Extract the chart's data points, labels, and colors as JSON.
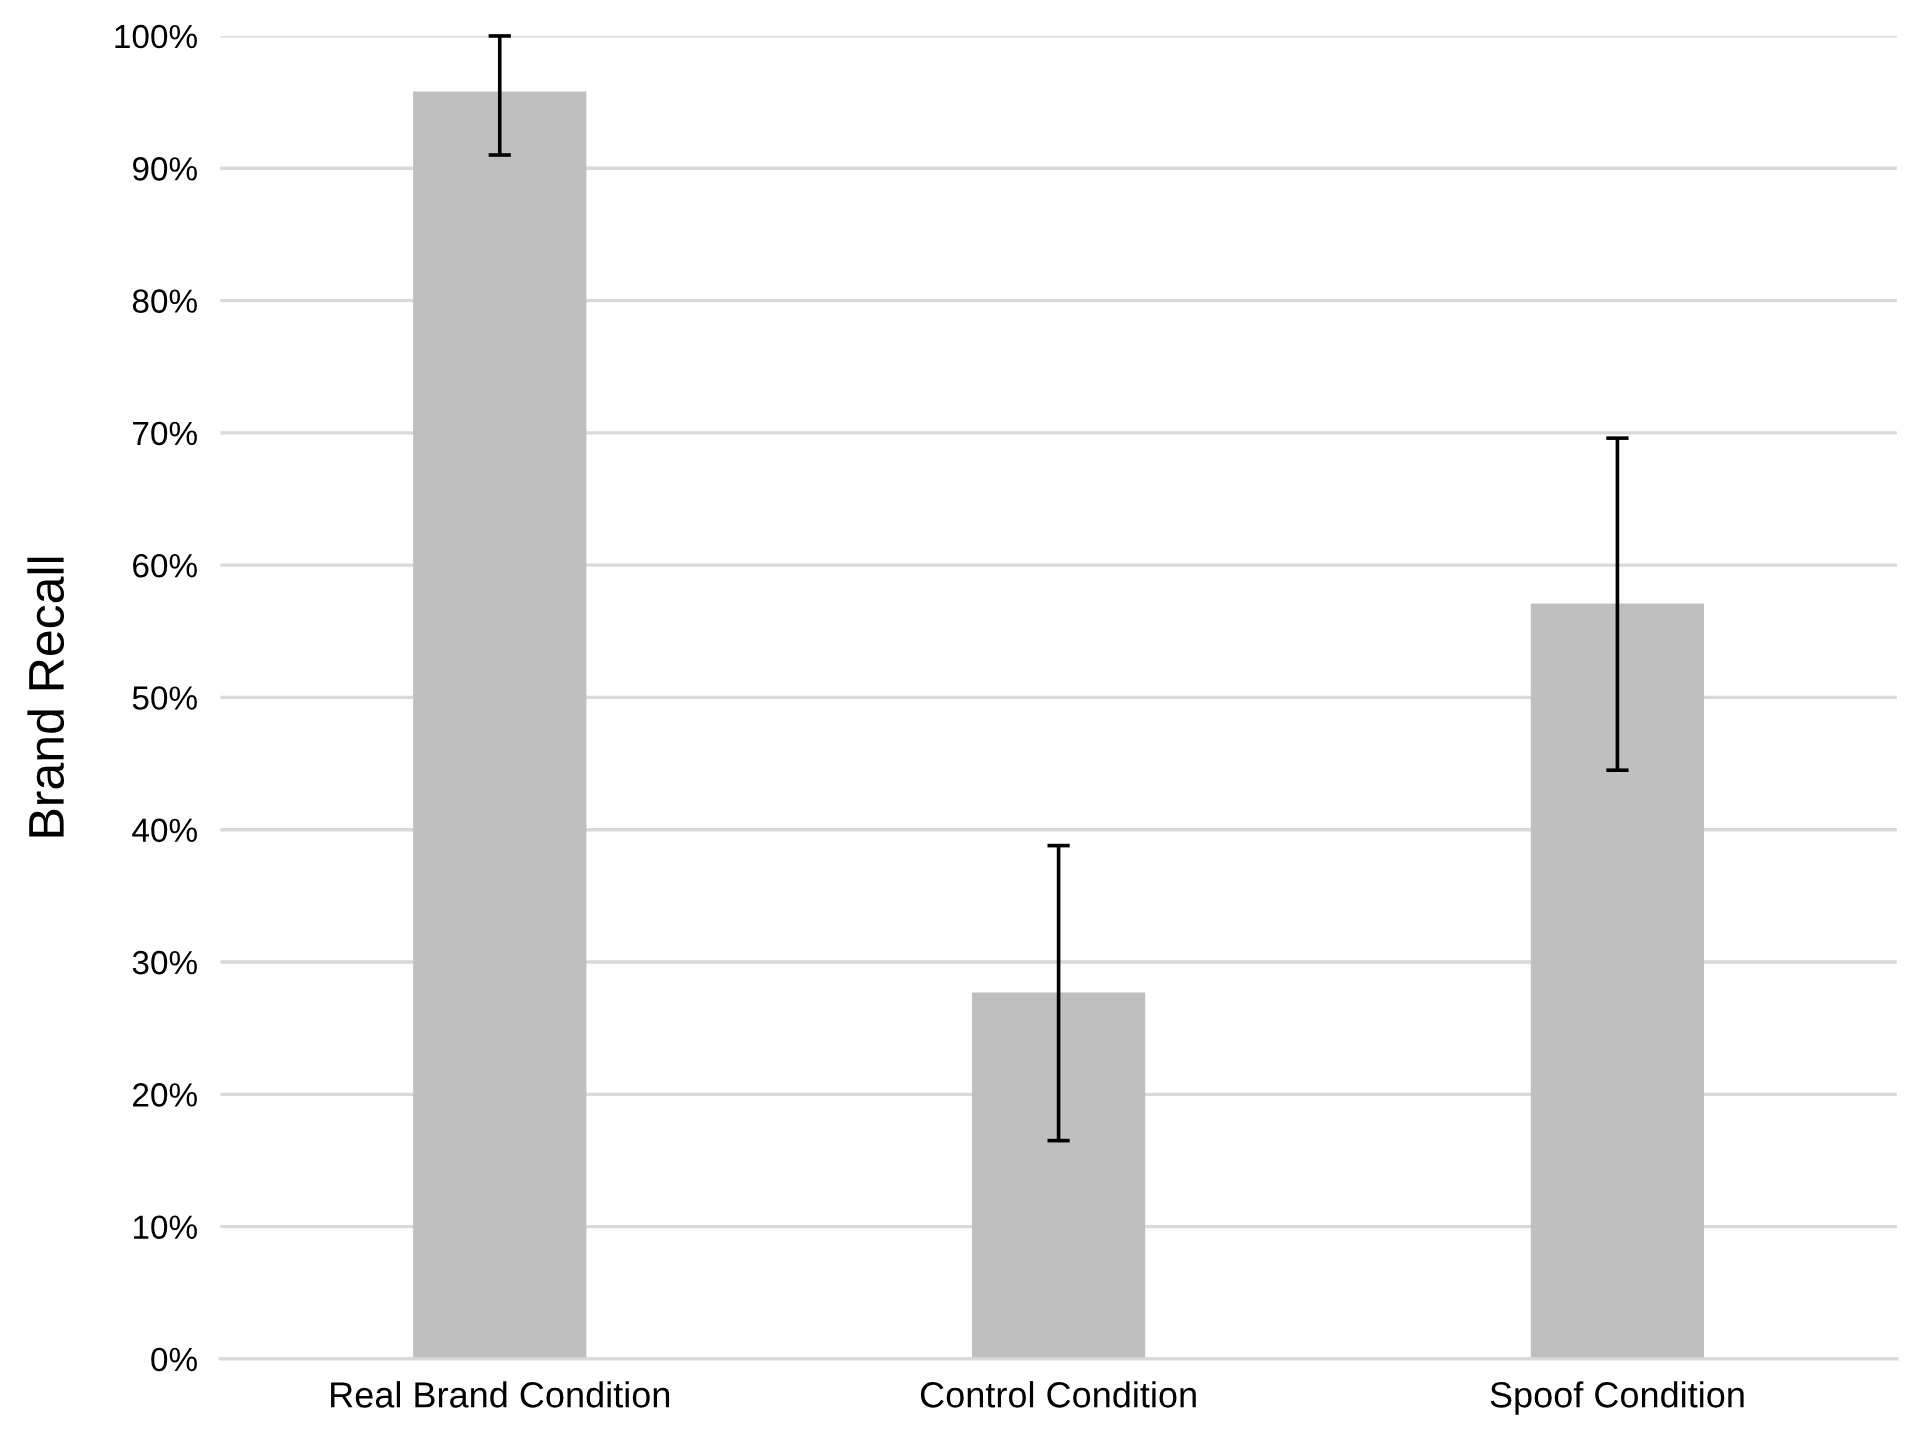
{
  "chart_data": {
    "type": "bar",
    "ylabel": "Brand Recall",
    "categories": [
      "Real Brand Condition",
      "Control Condition",
      "Spoof Condition"
    ],
    "values": [
      95.8,
      27.7,
      57.1
    ],
    "errors": [
      [
        91,
        100
      ],
      [
        16.5,
        38.8
      ],
      [
        44.5,
        69.6
      ]
    ],
    "color": "#bfbfbf",
    "ylim": [
      0,
      100
    ],
    "yticks": [
      {
        "value": 0,
        "label": "0%"
      },
      {
        "value": 10,
        "label": "10%"
      },
      {
        "value": 20,
        "label": "20%"
      },
      {
        "value": 30,
        "label": "30%"
      },
      {
        "value": 40,
        "label": "40%"
      },
      {
        "value": 50,
        "label": "50%"
      },
      {
        "value": 60,
        "label": "60%"
      },
      {
        "value": 70,
        "label": "70%"
      },
      {
        "value": 80,
        "label": "80%"
      },
      {
        "value": 90,
        "label": "90%"
      },
      {
        "value": 100,
        "label": "100%"
      }
    ],
    "grid": "y"
  }
}
